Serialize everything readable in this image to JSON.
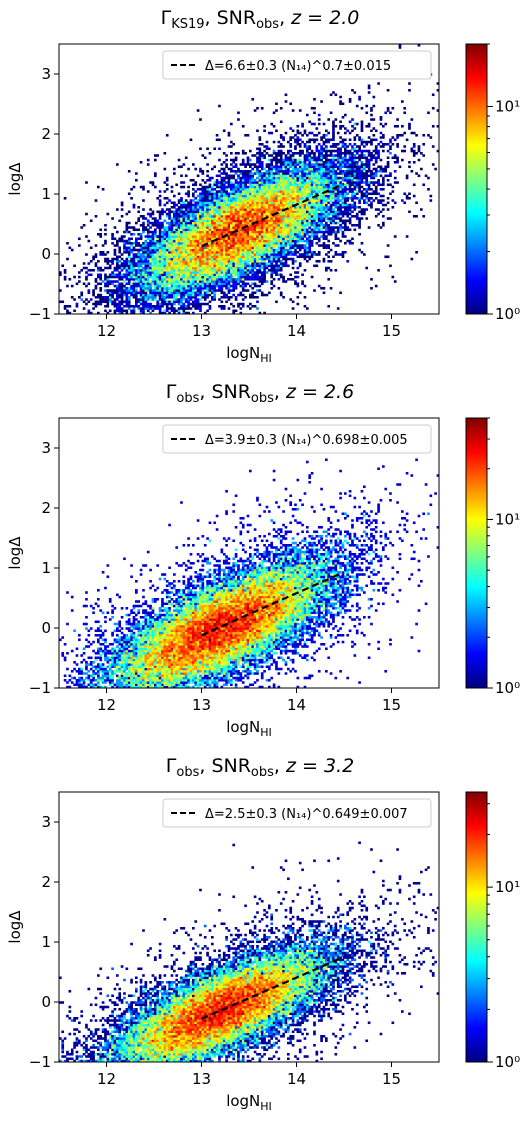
{
  "chart_data": [
    {
      "type": "heatmap",
      "title_parts": {
        "gamma_sub": "KS19",
        "snr_sub": "obs",
        "z_text": "z = 2.0"
      },
      "xlabel": "logN",
      "xlabel_sub": "HI",
      "ylabel": "logΔ",
      "xlim": [
        11.5,
        15.5
      ],
      "ylim": [
        -1,
        3.5
      ],
      "xticks": [
        "12",
        "13",
        "14",
        "15"
      ],
      "yticks": [
        "−1",
        "0",
        "1",
        "2",
        "3"
      ],
      "colorbar": {
        "scale": "log",
        "min": 1,
        "max": 20,
        "ticks": [
          "10⁰",
          "10¹"
        ]
      },
      "fit_line": {
        "x": [
          13.0,
          14.5
        ],
        "y": [
          0.13,
          1.17
        ],
        "amplitude": 6.6,
        "slope": 0.7
      },
      "legend": {
        "text": "Δ=6.6±0.3 (N₁₄)^0.7±0.015",
        "position": "top-right"
      },
      "density_model": {
        "center_x": 13.4,
        "center_y": 0.4,
        "spread_x": 0.55,
        "spread_y": 0.38,
        "slope": 0.7
      }
    },
    {
      "type": "heatmap",
      "title_parts": {
        "gamma_sub": "obs",
        "snr_sub": "obs",
        "z_text": "z = 2.6"
      },
      "xlabel": "logN",
      "xlabel_sub": "HI",
      "ylabel": "logΔ",
      "xlim": [
        11.5,
        15.5
      ],
      "ylim": [
        -1,
        3.5
      ],
      "xticks": [
        "12",
        "13",
        "14",
        "15"
      ],
      "yticks": [
        "−1",
        "0",
        "1",
        "2",
        "3"
      ],
      "colorbar": {
        "scale": "log",
        "min": 1,
        "max": 40,
        "ticks": [
          "10⁰",
          "10¹"
        ]
      },
      "fit_line": {
        "x": [
          13.0,
          14.5
        ],
        "y": [
          -0.12,
          0.93
        ],
        "amplitude": 3.9,
        "slope": 0.698
      },
      "legend": {
        "text": "Δ=3.9±0.3 (N₁₄)^0.698±0.005",
        "position": "top-right"
      },
      "density_model": {
        "center_x": 13.2,
        "center_y": 0.0,
        "spread_x": 0.55,
        "spread_y": 0.36,
        "slope": 0.7
      }
    },
    {
      "type": "heatmap",
      "title_parts": {
        "gamma_sub": "obs",
        "snr_sub": "obs",
        "z_text": "z = 3.2"
      },
      "xlabel": "logN",
      "xlabel_sub": "HI",
      "ylabel": "logΔ",
      "xlim": [
        11.5,
        15.5
      ],
      "ylim": [
        -1,
        3.5
      ],
      "xticks": [
        "12",
        "13",
        "14",
        "15"
      ],
      "yticks": [
        "−1",
        "0",
        "1",
        "2",
        "3"
      ],
      "colorbar": {
        "scale": "log",
        "min": 1,
        "max": 35,
        "ticks": [
          "10⁰",
          "10¹"
        ]
      },
      "fit_line": {
        "x": [
          13.0,
          14.5
        ],
        "y": [
          -0.28,
          0.75
        ],
        "amplitude": 2.5,
        "slope": 0.649
      },
      "legend": {
        "text": "Δ=2.5±0.3 (N₁₄)^0.649±0.007",
        "position": "top-right"
      },
      "density_model": {
        "center_x": 13.2,
        "center_y": -0.15,
        "spread_x": 0.55,
        "spread_y": 0.33,
        "slope": 0.65
      }
    }
  ],
  "colors": {
    "colormap": [
      "#00007f",
      "#0000ff",
      "#007fff",
      "#00ffff",
      "#7fff7f",
      "#ffff00",
      "#ff7f00",
      "#ff0000",
      "#7f0000"
    ],
    "fit_line": "#000000",
    "axes": "#000000",
    "background": "#ffffff"
  }
}
